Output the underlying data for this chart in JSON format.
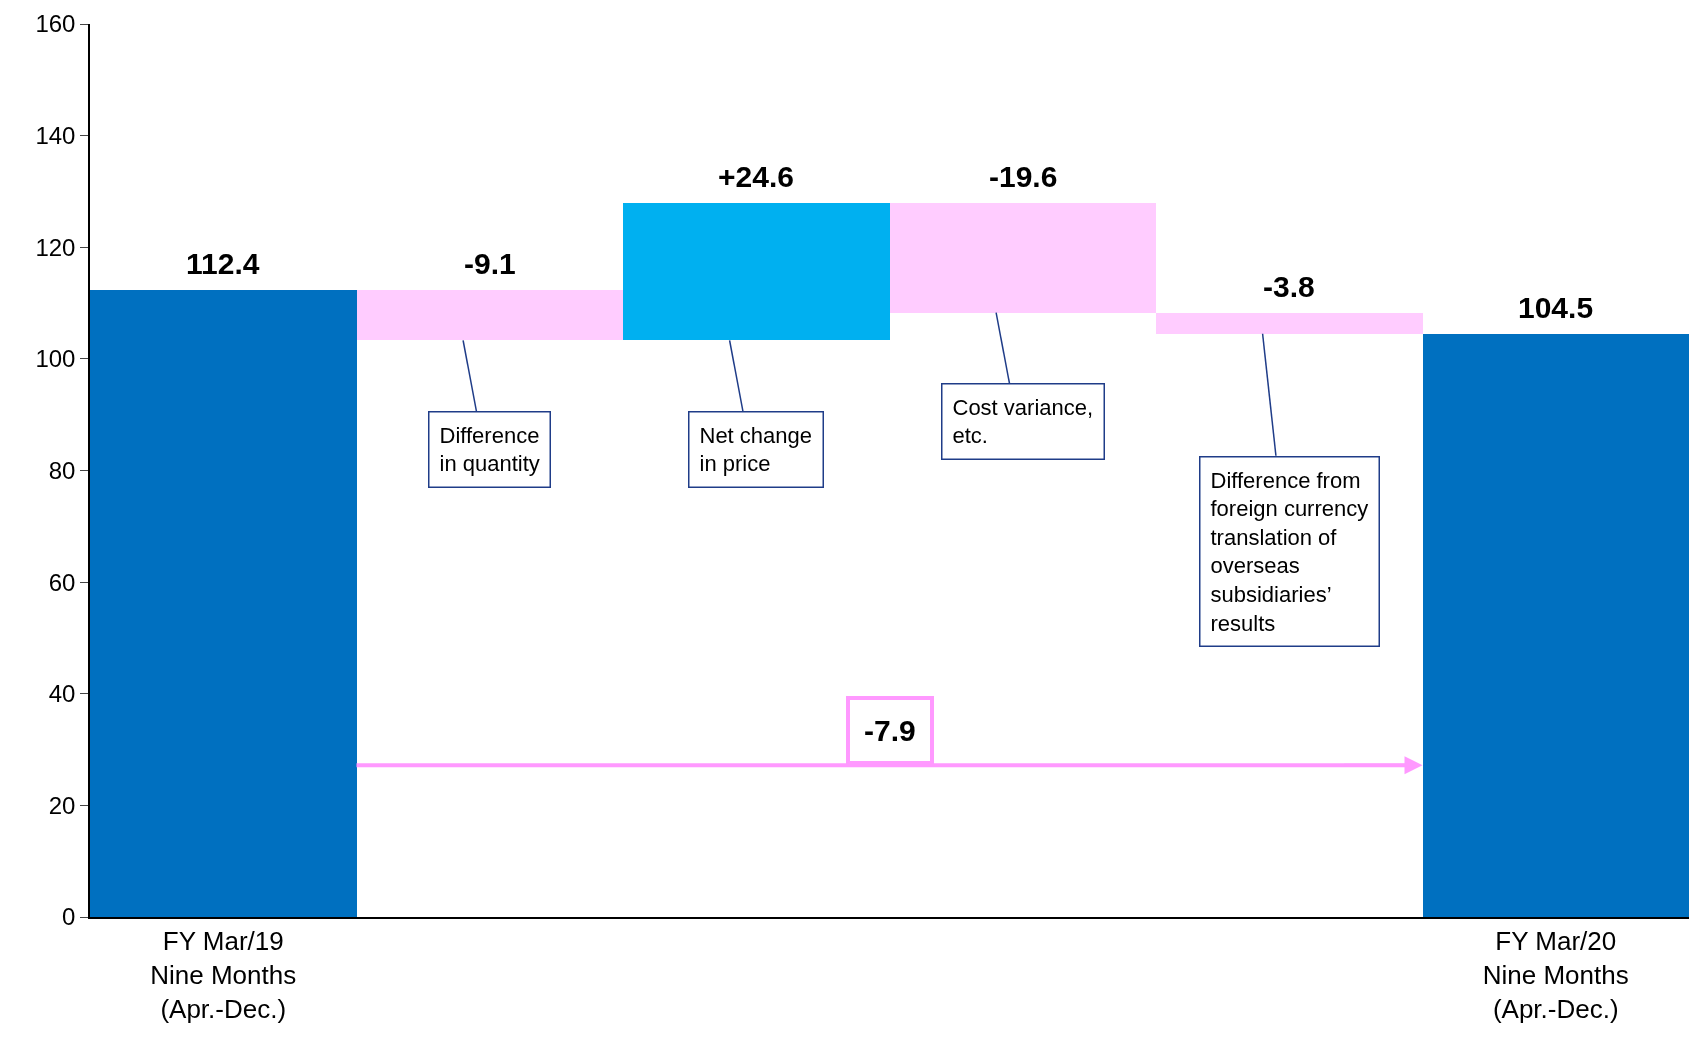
{
  "chart_data": {
    "type": "bar",
    "categories": [
      "FY Mar/19\nNine Months\n(Apr.-Dec.)",
      null,
      null,
      null,
      null,
      "FY Mar/20\nNine Months\n(Apr.-Dec.)"
    ],
    "values": [
      112.4,
      -9.1,
      24.6,
      -19.6,
      -3.8,
      104.5
    ],
    "base": [
      0,
      112.4,
      103.3,
      127.9,
      108.3,
      0
    ],
    "colors": [
      "#0070c0",
      "#ffccff",
      "#00b0f0",
      "#ffccff",
      "#ffccff",
      "#0070c0"
    ],
    "value_labels": [
      "112.4",
      "-9.1",
      "+24.6",
      "-19.6",
      "-3.8",
      "104.5"
    ],
    "ylim": [
      0,
      160
    ],
    "yticks": [
      0,
      20,
      40,
      60,
      80,
      100,
      120,
      140,
      160
    ],
    "annotations": [
      {
        "text": "Difference\nin quantity"
      },
      {
        "text": "Net change\nin price"
      },
      {
        "text": "Cost variance,\netc."
      },
      {
        "text": "Difference from\nforeign currency\ntranslation of\noverseas\nsubsidiaries’\nresults"
      },
      "-7.9"
    ]
  }
}
